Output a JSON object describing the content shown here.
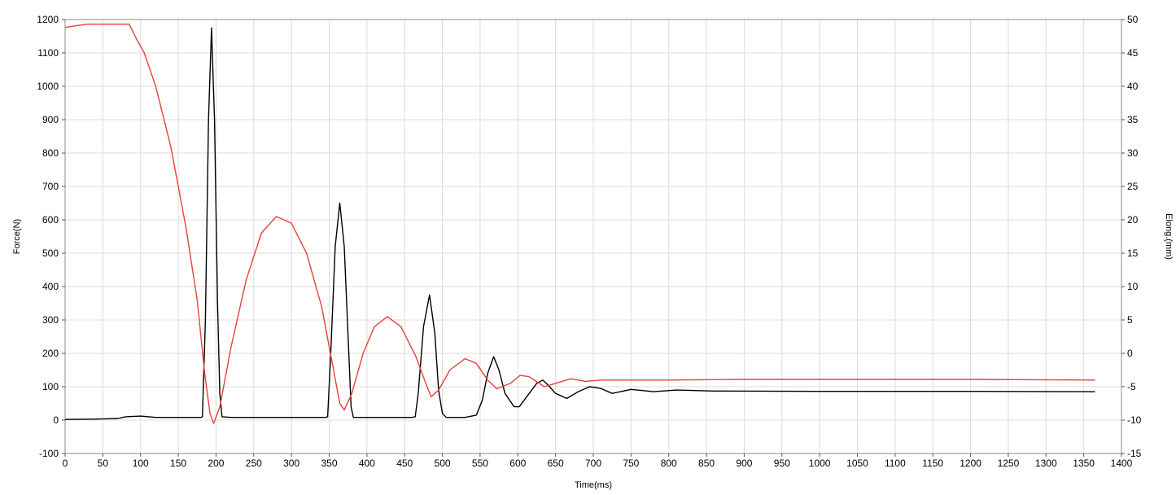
{
  "chart_data": {
    "type": "line",
    "title": "",
    "xlabel": "Time(ms)",
    "ylabel_left": "Force(N)",
    "ylabel_right": "Elong.(mm)",
    "xlim": [
      0,
      1400
    ],
    "ylim_left": [
      -100,
      1200
    ],
    "ylim_right": [
      -15,
      50
    ],
    "x_ticks": [
      0,
      50,
      100,
      150,
      200,
      250,
      300,
      350,
      400,
      450,
      500,
      550,
      600,
      650,
      700,
      750,
      800,
      850,
      900,
      950,
      1000,
      1050,
      1100,
      1150,
      1200,
      1250,
      1300,
      1350,
      1400
    ],
    "y_ticks_left": [
      -100,
      0,
      100,
      200,
      300,
      400,
      500,
      600,
      700,
      800,
      900,
      1000,
      1100,
      1200
    ],
    "y_ticks_right": [
      -15,
      -10,
      -5,
      0,
      5,
      10,
      15,
      20,
      25,
      30,
      35,
      40,
      45,
      50
    ],
    "grid": true,
    "series": [
      {
        "key": "force",
        "axis": "left",
        "color": "#000000",
        "points": [
          [
            0,
            2
          ],
          [
            40,
            3
          ],
          [
            70,
            5
          ],
          [
            80,
            10
          ],
          [
            100,
            12
          ],
          [
            120,
            8
          ],
          [
            150,
            8
          ],
          [
            180,
            8
          ],
          [
            182,
            10
          ],
          [
            186,
            300
          ],
          [
            190,
            900
          ],
          [
            194,
            1175
          ],
          [
            198,
            900
          ],
          [
            202,
            350
          ],
          [
            205,
            80
          ],
          [
            208,
            10
          ],
          [
            220,
            8
          ],
          [
            300,
            8
          ],
          [
            345,
            8
          ],
          [
            348,
            10
          ],
          [
            352,
            200
          ],
          [
            358,
            520
          ],
          [
            364,
            650
          ],
          [
            370,
            520
          ],
          [
            376,
            200
          ],
          [
            379,
            40
          ],
          [
            382,
            8
          ],
          [
            400,
            8
          ],
          [
            460,
            8
          ],
          [
            464,
            10
          ],
          [
            468,
            80
          ],
          [
            475,
            280
          ],
          [
            483,
            375
          ],
          [
            490,
            260
          ],
          [
            495,
            90
          ],
          [
            500,
            20
          ],
          [
            505,
            8
          ],
          [
            530,
            8
          ],
          [
            545,
            15
          ],
          [
            553,
            60
          ],
          [
            560,
            140
          ],
          [
            568,
            190
          ],
          [
            575,
            150
          ],
          [
            583,
            80
          ],
          [
            595,
            40
          ],
          [
            602,
            40
          ],
          [
            610,
            65
          ],
          [
            625,
            110
          ],
          [
            633,
            120
          ],
          [
            640,
            105
          ],
          [
            650,
            80
          ],
          [
            665,
            65
          ],
          [
            680,
            85
          ],
          [
            695,
            100
          ],
          [
            710,
            95
          ],
          [
            725,
            80
          ],
          [
            750,
            92
          ],
          [
            780,
            85
          ],
          [
            810,
            90
          ],
          [
            860,
            87
          ],
          [
            1000,
            86
          ],
          [
            1200,
            86
          ],
          [
            1365,
            85
          ]
        ]
      },
      {
        "key": "elongation",
        "axis": "right",
        "color": "#e8403a",
        "points": [
          [
            0,
            48.8
          ],
          [
            10,
            49.0
          ],
          [
            30,
            49.3
          ],
          [
            85,
            49.3
          ],
          [
            95,
            47
          ],
          [
            105,
            45
          ],
          [
            120,
            40
          ],
          [
            140,
            31
          ],
          [
            160,
            19
          ],
          [
            175,
            8
          ],
          [
            185,
            -3
          ],
          [
            192,
            -9
          ],
          [
            197,
            -10.5
          ],
          [
            205,
            -8
          ],
          [
            220,
            1
          ],
          [
            240,
            11
          ],
          [
            260,
            18
          ],
          [
            280,
            20.5
          ],
          [
            300,
            19.5
          ],
          [
            320,
            15
          ],
          [
            340,
            7
          ],
          [
            355,
            -2
          ],
          [
            364,
            -7.5
          ],
          [
            370,
            -8.5
          ],
          [
            380,
            -6
          ],
          [
            395,
            0
          ],
          [
            410,
            4
          ],
          [
            427,
            5.5
          ],
          [
            445,
            4
          ],
          [
            465,
            -0.5
          ],
          [
            478,
            -4.5
          ],
          [
            485,
            -6.5
          ],
          [
            495,
            -5.5
          ],
          [
            510,
            -2.5
          ],
          [
            530,
            -0.8
          ],
          [
            545,
            -1.5
          ],
          [
            560,
            -4
          ],
          [
            572,
            -5.3
          ],
          [
            590,
            -4.5
          ],
          [
            603,
            -3.3
          ],
          [
            615,
            -3.5
          ],
          [
            635,
            -5
          ],
          [
            650,
            -4.5
          ],
          [
            670,
            -3.8
          ],
          [
            690,
            -4.2
          ],
          [
            710,
            -4.0
          ],
          [
            800,
            -4.0
          ],
          [
            900,
            -3.9
          ],
          [
            1000,
            -3.9
          ],
          [
            1200,
            -3.9
          ],
          [
            1365,
            -4.0
          ]
        ]
      }
    ]
  }
}
